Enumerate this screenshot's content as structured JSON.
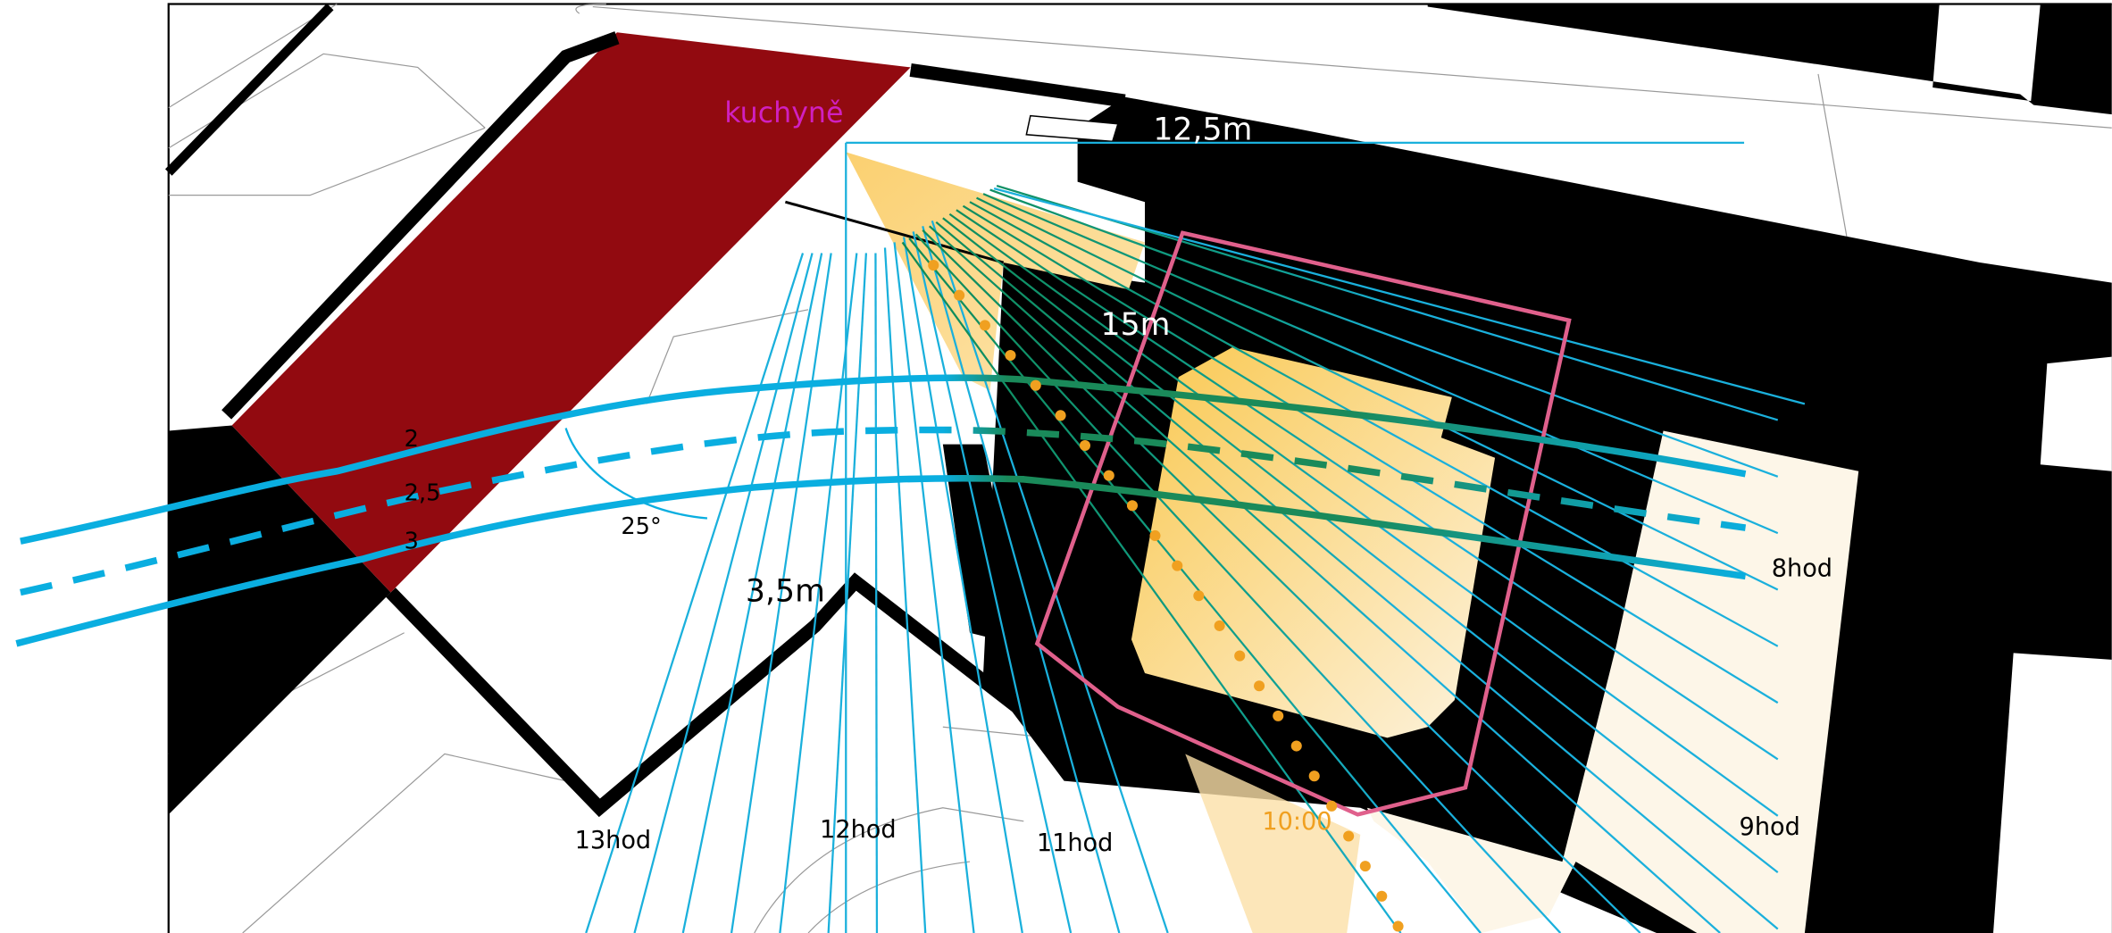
{
  "labels": {
    "kitchen": "kuchyně",
    "distance_top": "12,5m",
    "distance_mid": "15m",
    "distance_low": "3,5m",
    "angle": "25°",
    "levels": [
      "2",
      "2,5",
      "3"
    ],
    "times": {
      "h8": "8hod",
      "h9": "9hod",
      "t10": "10:00",
      "h11": "11hod",
      "h12": "12hod",
      "h13": "13hod"
    }
  }
}
